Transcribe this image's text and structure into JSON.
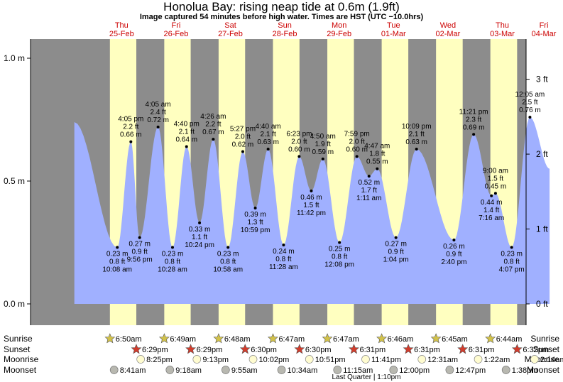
{
  "title": "Honolua Bay: rising  neap tide at 0.6m (1.9ft)",
  "subtitle": "Image captured 54 minutes before high water. Times are HST (UTC −10.0hrs)",
  "colors": {
    "night": "#8c8c8c",
    "day": "#ffffc0",
    "tide": "#a0b0ff",
    "day_text": "#cc0000",
    "sunrise_star": "#d2c24a",
    "sunset_star": "#d23c2c",
    "moonrise": "#fffcd0",
    "moonset": "#b8b8b0"
  },
  "chart_data": {
    "type": "area",
    "x_unit": "days from Thu 25-Feb 00:00 HST",
    "xlim": [
      -0.37,
      8.7
    ],
    "ylim_m": [
      -0.05,
      3.3
    ],
    "left_axis": {
      "unit": "m",
      "ticks": [
        {
          "v": 0.0,
          "label": "0.0 m"
        },
        {
          "v": 0.5,
          "label": "0.5 m"
        },
        {
          "v": 1.0,
          "label": "1.0 m"
        }
      ]
    },
    "right_axis": {
      "unit": "ft",
      "ticks": [
        {
          "v": 0,
          "label": "0 ft"
        },
        {
          "v": 1,
          "label": "1 ft"
        },
        {
          "v": 2,
          "label": "2 ft"
        },
        {
          "v": 3,
          "label": "3 ft"
        }
      ]
    },
    "days": [
      {
        "dow": "Thu",
        "date": "25-Feb",
        "sunrise": "6:50am",
        "sunset": "6:29pm",
        "moonrise": "8:25pm",
        "moonset": "8:41am"
      },
      {
        "dow": "Fri",
        "date": "26-Feb",
        "sunrise": "6:49am",
        "sunset": "6:29pm",
        "moonrise": "9:13pm",
        "moonset": "9:18am"
      },
      {
        "dow": "Sat",
        "date": "27-Feb",
        "sunrise": "6:48am",
        "sunset": "6:30pm",
        "moonrise": "10:02pm",
        "moonset": "9:55am"
      },
      {
        "dow": "Sun",
        "date": "28-Feb",
        "sunrise": "6:47am",
        "sunset": "6:30pm",
        "moonrise": "10:51pm",
        "moonset": "10:34am"
      },
      {
        "dow": "Mon",
        "date": "29-Feb",
        "sunrise": "6:47am",
        "sunset": "6:31pm",
        "moonrise": "11:41pm",
        "moonset": "11:15am"
      },
      {
        "dow": "Tue",
        "date": "01-Mar",
        "sunrise": "6:46am",
        "sunset": "6:31pm",
        "moonrise": "",
        "moonset": "12:00pm"
      },
      {
        "dow": "Wed",
        "date": "02-Mar",
        "sunrise": "6:45am",
        "sunset": "6:31pm",
        "moonrise": "12:31am",
        "moonset": "12:47pm"
      },
      {
        "dow": "Thu",
        "date": "03-Mar",
        "sunrise": "6:44am",
        "sunset": "6:32pm",
        "moonrise": "1:22am",
        "moonset": "1:38pm"
      },
      {
        "dow": "Fri",
        "date": "04-Mar",
        "sunrise": "",
        "sunset": "",
        "moonrise": "2:14am",
        "moonset": ""
      }
    ],
    "tides": [
      {
        "x": 0.42,
        "time": "10:08 am",
        "m": "0.23 m",
        "ft": "0.8 ft",
        "v": 0.23,
        "type": "low"
      },
      {
        "x": 0.67,
        "time": "4:05 pm",
        "m": "0.66 m",
        "ft": "2.2 ft",
        "v": 0.66,
        "type": "high"
      },
      {
        "x": 0.831,
        "time": "9:56 pm",
        "m": "0.27 m",
        "ft": "0.9 ft",
        "v": 0.27,
        "type": "low"
      },
      {
        "x": 1.17,
        "time": "4:05 am",
        "m": "0.72 m",
        "ft": "2.4 ft",
        "v": 0.72,
        "type": "high"
      },
      {
        "x": 1.436,
        "time": "10:28 am",
        "m": "0.23 m",
        "ft": "0.8 ft",
        "v": 0.23,
        "type": "low"
      },
      {
        "x": 1.694,
        "time": "4:40 pm",
        "m": "0.64 m",
        "ft": "2.1 ft",
        "v": 0.64,
        "type": "high"
      },
      {
        "x": 1.933,
        "time": "10:24 pm",
        "m": "0.33 m",
        "ft": "1.1 ft",
        "v": 0.33,
        "type": "low"
      },
      {
        "x": 2.185,
        "time": "4:26 am",
        "m": "0.67 m",
        "ft": "2.2 ft",
        "v": 0.67,
        "type": "high"
      },
      {
        "x": 2.457,
        "time": "10:58 am",
        "m": "0.23 m",
        "ft": "0.8 ft",
        "v": 0.23,
        "type": "low"
      },
      {
        "x": 2.728,
        "time": "5:27 pm",
        "m": "0.62 m",
        "ft": "2.0 ft",
        "v": 0.62,
        "type": "high"
      },
      {
        "x": 2.958,
        "time": "10:59 pm",
        "m": "0.39 m",
        "ft": "1.3 ft",
        "v": 0.39,
        "type": "low"
      },
      {
        "x": 3.194,
        "time": "4:40 am",
        "m": "0.63 m",
        "ft": "2.1 ft",
        "v": 0.63,
        "type": "high"
      },
      {
        "x": 3.478,
        "time": "11:28 am",
        "m": "0.24 m",
        "ft": "0.8 ft",
        "v": 0.24,
        "type": "low"
      },
      {
        "x": 3.765,
        "time": "6:23 pm",
        "m": "0.60 m",
        "ft": "2.0 ft",
        "v": 0.6,
        "type": "high"
      },
      {
        "x": 3.988,
        "time": "11:42 pm",
        "m": "0.46 m",
        "ft": "1.5 ft",
        "v": 0.46,
        "type": "low"
      },
      {
        "x": 4.201,
        "time": "4:50 am",
        "m": "0.59 m",
        "ft": "1.9 ft",
        "v": 0.59,
        "type": "high"
      },
      {
        "x": 4.506,
        "time": "12:08 pm",
        "m": "0.25 m",
        "ft": "0.8 ft",
        "v": 0.25,
        "type": "low"
      },
      {
        "x": 4.826,
        "time": "7:59 pm",
        "m": "0.60 m",
        "ft": "2.0 ft",
        "v": 0.6,
        "type": "high"
      },
      {
        "x": 5.049,
        "time": "1:11 am",
        "m": "0.52 m",
        "ft": "1.7 ft",
        "v": 0.52,
        "type": "low"
      },
      {
        "x": 5.2,
        "time": "4:47 am",
        "m": "0.55 m",
        "ft": "1.8 ft",
        "v": 0.55,
        "type": "high"
      },
      {
        "x": 5.544,
        "time": "1:04 pm",
        "m": "0.27 m",
        "ft": "0.9 ft",
        "v": 0.27,
        "type": "low"
      },
      {
        "x": 5.923,
        "time": "10:09 pm",
        "m": "0.63 m",
        "ft": "2.1 ft",
        "v": 0.63,
        "type": "high"
      },
      {
        "x": 6.611,
        "time": "2:40 pm",
        "m": "0.26 m",
        "ft": "0.9 ft",
        "v": 0.26,
        "type": "low"
      },
      {
        "x": 6.973,
        "time": "11:21 pm",
        "m": "0.69 m",
        "ft": "2.3 ft",
        "v": 0.69,
        "type": "high"
      },
      {
        "x": 7.375,
        "time": "9:00 am",
        "m": "0.45 m",
        "ft": "1.5 ft",
        "v": 0.45,
        "type": "high"
      },
      {
        "x": 7.3,
        "time": "7:16 am",
        "m": "0.44 m",
        "ft": "1.4 ft",
        "v": 0.44,
        "type": "low"
      },
      {
        "x": 7.672,
        "time": "4:07 pm",
        "m": "0.23 m",
        "ft": "0.8 ft",
        "v": 0.23,
        "type": "low"
      },
      {
        "x": 8.008,
        "time": "12:05 am",
        "m": "0.76 m",
        "ft": "2.5 ft",
        "v": 0.76,
        "type": "high"
      }
    ],
    "rows": {
      "sunrise": "Sunrise",
      "sunset": "Sunset",
      "moonrise": "Moonrise",
      "moonset": "Moonset"
    },
    "moon_phase": "Last Quarter | 1:10pm"
  }
}
